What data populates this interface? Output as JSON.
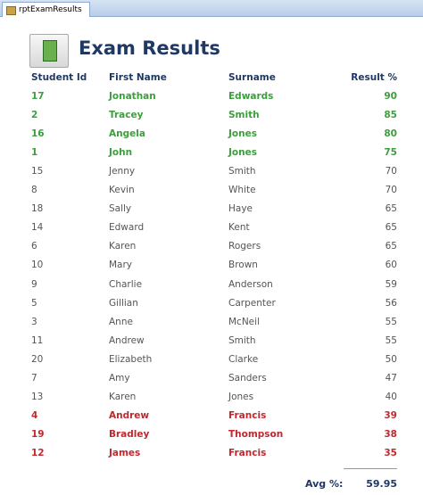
{
  "tab": {
    "label": "rptExamResults"
  },
  "header": {
    "title": "Exam Results"
  },
  "table": {
    "columns": [
      "Student Id",
      "First Name",
      "Surname",
      "Result %"
    ],
    "rows": [
      {
        "cells": [
          17,
          "Jonathan",
          "Edwards",
          90
        ],
        "color": "#3c9e3c"
      },
      {
        "cells": [
          2,
          "Tracey",
          "Smith",
          85
        ],
        "color": "#3c9e3c"
      },
      {
        "cells": [
          16,
          "Angela",
          "Jones",
          80
        ],
        "color": "#3c9e3c"
      },
      {
        "cells": [
          1,
          "John",
          "Jones",
          75
        ],
        "color": "#3c9e3c"
      },
      {
        "cells": [
          15,
          "Jenny",
          "Smith",
          70
        ],
        "color": "#555555"
      },
      {
        "cells": [
          8,
          "Kevin",
          "White",
          70
        ],
        "color": "#555555"
      },
      {
        "cells": [
          18,
          "Sally",
          "Haye",
          65
        ],
        "color": "#555555"
      },
      {
        "cells": [
          14,
          "Edward",
          "Kent",
          65
        ],
        "color": "#555555"
      },
      {
        "cells": [
          6,
          "Karen",
          "Rogers",
          65
        ],
        "color": "#555555"
      },
      {
        "cells": [
          10,
          "Mary",
          "Brown",
          60
        ],
        "color": "#555555"
      },
      {
        "cells": [
          9,
          "Charlie",
          "Anderson",
          59
        ],
        "color": "#555555"
      },
      {
        "cells": [
          5,
          "Gillian",
          "Carpenter",
          56
        ],
        "color": "#555555"
      },
      {
        "cells": [
          3,
          "Anne",
          "McNeil",
          55
        ],
        "color": "#555555"
      },
      {
        "cells": [
          11,
          "Andrew",
          "Smith",
          55
        ],
        "color": "#555555"
      },
      {
        "cells": [
          20,
          "Elizabeth",
          "Clarke",
          50
        ],
        "color": "#555555"
      },
      {
        "cells": [
          7,
          "Amy",
          "Sanders",
          47
        ],
        "color": "#555555"
      },
      {
        "cells": [
          13,
          "Karen",
          "Jones",
          40
        ],
        "color": "#555555"
      },
      {
        "cells": [
          4,
          "Andrew",
          "Francis",
          39
        ],
        "color": "#c0282e"
      },
      {
        "cells": [
          19,
          "Bradley",
          "Thompson",
          38
        ],
        "color": "#c0282e"
      },
      {
        "cells": [
          12,
          "James",
          "Francis",
          35
        ],
        "color": "#c0282e"
      }
    ]
  },
  "footer": {
    "label": "Avg %:",
    "value": 59.95
  }
}
